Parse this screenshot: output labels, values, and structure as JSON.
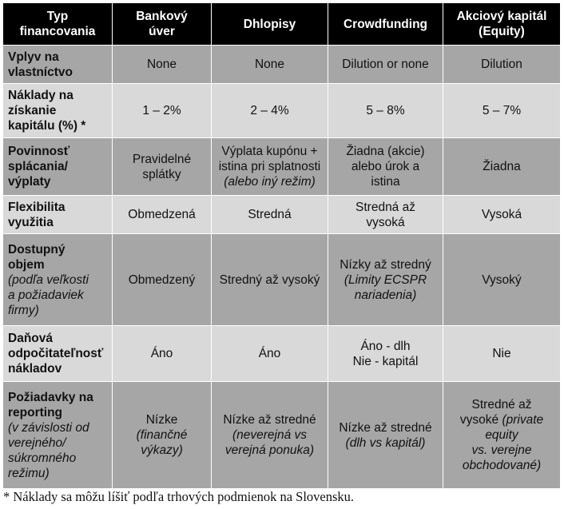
{
  "headers": [
    [
      "Typ",
      "financovania"
    ],
    [
      "Bankový",
      "úver"
    ],
    [
      "Dhlopisy"
    ],
    [
      "Crowdfunding"
    ],
    [
      "Akciový kapitál",
      "(Equity)"
    ]
  ],
  "rows": [
    {
      "label": [
        "Vplyv na",
        "vlastníctvo"
      ],
      "cells": [
        [
          "None"
        ],
        [
          "None"
        ],
        [
          "Dilution or none"
        ],
        [
          "Dilution"
        ]
      ]
    },
    {
      "label": [
        "Náklady na",
        "získanie",
        "kapitálu (%) *"
      ],
      "cells": [
        [
          "1 – 2%"
        ],
        [
          "2 – 4%"
        ],
        [
          "5 – 8%"
        ],
        [
          "5 – 7%"
        ]
      ]
    },
    {
      "label": [
        "Povinnosť",
        "splácania/",
        "výplaty"
      ],
      "cells": [
        [
          "Pravidelné",
          "splátky"
        ],
        [
          "Výplata kupónu +",
          "istina pri splatnosti"
        ],
        [
          "Žiadna (akcie)",
          "alebo úrok a",
          "istina"
        ],
        [
          "Žiadna"
        ]
      ],
      "cell_notes": [
        "",
        "(alebo iný režim)",
        "",
        ""
      ]
    },
    {
      "label": [
        "Flexibilita",
        "využitia"
      ],
      "cells": [
        [
          "Obmedzená"
        ],
        [
          "Stredná"
        ],
        [
          "Stredná až",
          "vysoká"
        ],
        [
          "Vysoká"
        ]
      ]
    },
    {
      "label": [
        "Dostupný",
        "objem"
      ],
      "label_note": [
        "(podľa veľkosti",
        "a požiadaviek",
        "firmy)"
      ],
      "cells": [
        [
          "Obmedzený"
        ],
        [
          "Stredný až vysoký"
        ],
        [
          "Nízky až stredný"
        ],
        [
          "Vysoký"
        ]
      ],
      "cell_notes": [
        "",
        "",
        "(Limity ECSPR\nnariadenia)",
        ""
      ]
    },
    {
      "label": [
        "Daňová",
        "odpočitateľnosť",
        "nákladov"
      ],
      "cells": [
        [
          "Áno"
        ],
        [
          "Áno"
        ],
        [
          "Áno - dlh",
          "Nie - kapitál"
        ],
        [
          "Nie"
        ]
      ]
    },
    {
      "label": [
        "Požiadavky na",
        "reporting"
      ],
      "label_note": [
        "(v závislosti od",
        "verejného/",
        "súkromného",
        "režimu)"
      ],
      "cells": [
        [
          "Nízke"
        ],
        [
          "Nízke až stredné"
        ],
        [
          "Nízke až stredné"
        ],
        [
          "Stredné až",
          "vysoké"
        ]
      ],
      "cell_notes": [
        "(finančné\nvýkazy)",
        "(neverejná vs\nverejná ponuka)",
        "(dlh vs kapitál)",
        "(private\nequity\nvs. verejne\nobchodované)"
      ]
    }
  ],
  "footnote": "* Náklady sa môžu líšiť podľa trhových podmienok na Slovensku."
}
